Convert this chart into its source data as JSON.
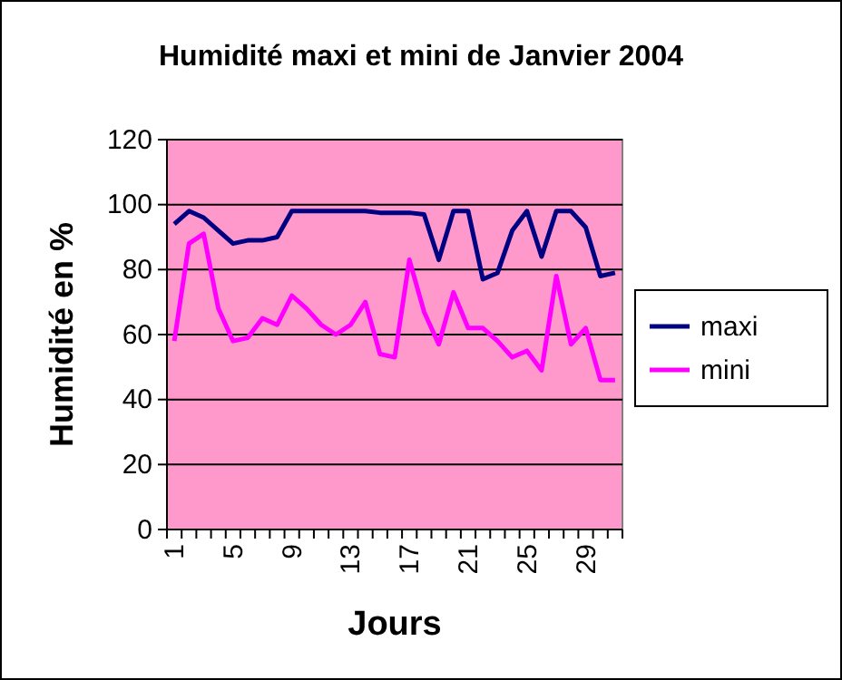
{
  "chart_data": {
    "type": "line",
    "title": "Humidité maxi et mini de Janvier 2004",
    "xlabel": "Jours",
    "ylabel": "Humidité en %",
    "categories": [
      "1",
      null,
      null,
      null,
      "5",
      null,
      null,
      null,
      "9",
      null,
      null,
      null,
      "13",
      null,
      null,
      null,
      "17",
      null,
      null,
      null,
      "21",
      null,
      null,
      null,
      "25",
      null,
      null,
      null,
      "29",
      null,
      null
    ],
    "series": [
      {
        "name": "maxi",
        "color": "#000080",
        "values": [
          94,
          98,
          96,
          92,
          88,
          89,
          89,
          90,
          98,
          98,
          98,
          98,
          98,
          98,
          97.5,
          97.5,
          97.5,
          97,
          83,
          98,
          98,
          77,
          79,
          92,
          98,
          84,
          98,
          98,
          93,
          78,
          79
        ]
      },
      {
        "name": "mini",
        "color": "#ff00ff",
        "values": [
          58,
          88,
          91,
          68,
          58,
          59,
          65,
          63,
          72,
          68,
          63,
          60,
          63,
          70,
          54,
          53,
          83,
          67,
          57,
          73,
          62,
          62,
          58,
          53,
          55,
          49,
          78,
          57,
          62,
          46,
          46
        ]
      }
    ],
    "ylim": [
      0,
      120
    ],
    "yticks": [
      0,
      20,
      40,
      60,
      80,
      100,
      120
    ],
    "grid": "y",
    "legend": "right",
    "marker": "none",
    "line_style": "solid"
  }
}
